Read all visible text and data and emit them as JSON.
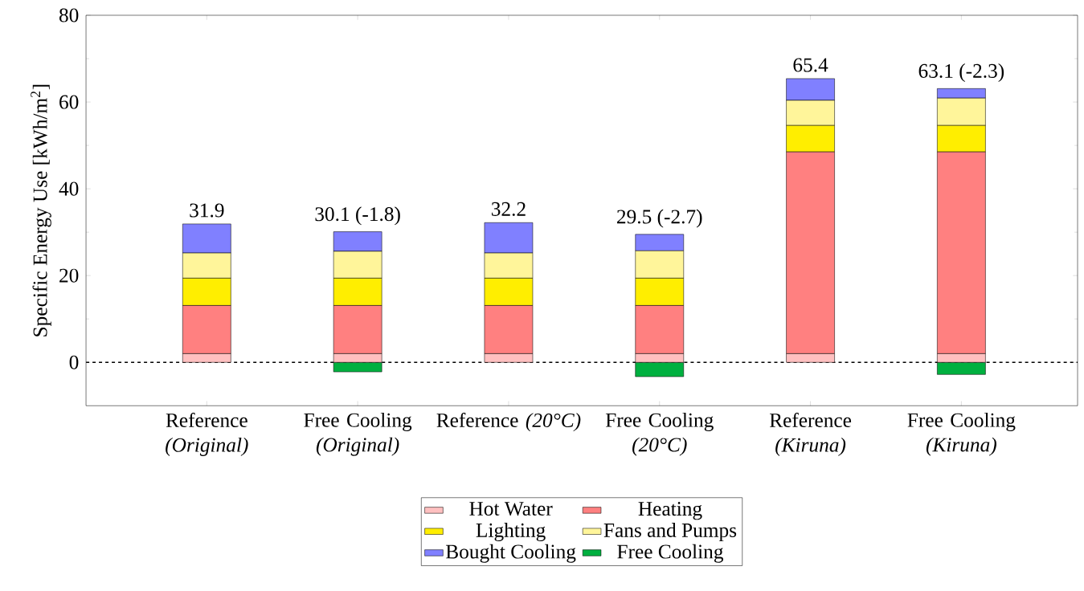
{
  "chart_data": {
    "type": "bar",
    "stacked": true,
    "ylabel": "Specific Energy Use [kWh/m$^{2}$]",
    "categories": [
      "Reference *(Original)*",
      "Free Cooling *(Original)*",
      "Reference *(20°C)*",
      "Free Cooling *(20°C)*",
      "Reference *(Kiruna)*",
      "Free Cooling *(Kiruna)*"
    ],
    "series": [
      {
        "name": "Hot Water",
        "color": "#ffc0c0",
        "values": [
          2.0,
          2.0,
          2.0,
          2.0,
          2.0,
          2.0
        ]
      },
      {
        "name": "Heating",
        "color": "#ff8080",
        "values": [
          11.1,
          11.1,
          11.1,
          11.1,
          46.5,
          46.5
        ]
      },
      {
        "name": "Lighting",
        "color": "#ffee00",
        "values": [
          6.3,
          6.3,
          6.3,
          6.3,
          6.1,
          6.1
        ]
      },
      {
        "name": "Fans and Pumps",
        "color": "#fff59a",
        "values": [
          5.8,
          6.2,
          5.8,
          6.3,
          5.8,
          6.3
        ]
      },
      {
        "name": "Bought Cooling",
        "color": "#8080ff",
        "values": [
          6.7,
          4.5,
          7.0,
          3.8,
          5.0,
          2.2
        ]
      },
      {
        "name": "Free Cooling",
        "color": "#00b040",
        "values": [
          null,
          -2.2,
          null,
          -3.3,
          null,
          -2.8
        ]
      }
    ],
    "totals": [
      "31.9",
      "30.1 (-1.8)",
      "32.2",
      "29.5 (-2.7)",
      "65.4",
      "63.1 (-2.3)"
    ],
    "ylim": [
      -10,
      80
    ],
    "yticks": [
      0,
      20,
      40,
      60,
      80
    ],
    "ref_lines": [
      {
        "axis": "y",
        "value": 0,
        "color": "#000000",
        "line_style": "dashed"
      }
    ],
    "grid": false,
    "legend": "bottom"
  }
}
